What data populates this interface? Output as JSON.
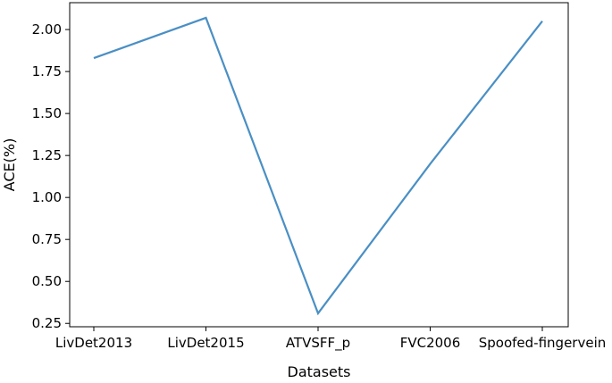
{
  "chart_data": {
    "type": "line",
    "title": "",
    "xlabel": "Datasets",
    "ylabel": "ACE(%)",
    "categories": [
      "LivDet2013",
      "LivDet2015",
      "ATVSFF_p",
      "FVC2006",
      "Spoofed-fingervein"
    ],
    "series": [
      {
        "values": [
          1.83,
          2.07,
          0.31,
          1.2,
          2.05
        ]
      }
    ],
    "ylim": [
      0.23,
      2.16
    ],
    "yticks": [
      0.25,
      0.5,
      0.75,
      1.0,
      1.25,
      1.5,
      1.75,
      2.0
    ],
    "ytick_labels": [
      "0.25",
      "0.50",
      "0.75",
      "1.00",
      "1.25",
      "1.50",
      "1.75",
      "2.00"
    ],
    "grid": false,
    "line_color": "#4a8fc4"
  }
}
